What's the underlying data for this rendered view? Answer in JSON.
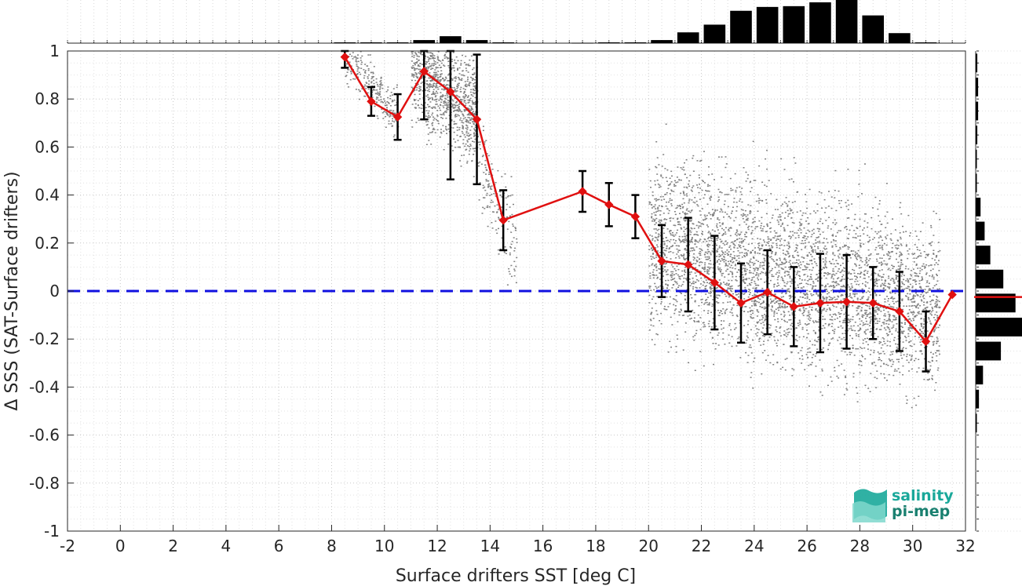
{
  "chart_data": {
    "type": "line",
    "xlabel": "Surface drifters SST [deg C]",
    "ylabel": "Δ SSS (SAT-Surface drifters)",
    "xlim": [
      -2,
      32
    ],
    "ylim": [
      -1,
      1
    ],
    "x_ticks": [
      "-2",
      "0",
      "2",
      "4",
      "6",
      "8",
      "10",
      "12",
      "14",
      "16",
      "18",
      "20",
      "22",
      "24",
      "26",
      "28",
      "30",
      "32"
    ],
    "y_ticks": [
      "-1",
      "-0.8",
      "-0.6",
      "-0.4",
      "-0.2",
      "0",
      "0.2",
      "0.4",
      "0.6",
      "0.8",
      "1"
    ],
    "grid": true,
    "reference_line": {
      "y": 0,
      "style": "dashed",
      "color": "#1010e0"
    },
    "series": [
      {
        "style": "red line with diamond markers and black error bars",
        "color": "#e01010",
        "errorbar_color": "#000000",
        "x": [
          8.5,
          9.5,
          10.5,
          11.5,
          12.5,
          13.5,
          14.5,
          17.5,
          18.5,
          19.5,
          20.5,
          21.5,
          22.5,
          23.5,
          24.5,
          25.5,
          26.5,
          27.5,
          28.5,
          29.5,
          30.5,
          31.5
        ],
        "y": [
          0.975,
          0.79,
          0.725,
          0.915,
          0.83,
          0.715,
          0.295,
          0.415,
          0.36,
          0.31,
          0.125,
          0.11,
          0.035,
          -0.05,
          -0.005,
          -0.065,
          -0.05,
          -0.045,
          -0.05,
          -0.085,
          -0.21,
          -0.015
        ],
        "yerr": [
          0.045,
          0.06,
          0.095,
          0.2,
          0.365,
          0.27,
          0.125,
          0.085,
          0.09,
          0.09,
          0.15,
          0.195,
          0.195,
          0.165,
          0.175,
          0.165,
          0.205,
          0.195,
          0.15,
          0.165,
          0.125,
          0
        ]
      }
    ],
    "scatter_cloud": {
      "color": "#808080",
      "description": "gray raw collocation points",
      "clusters": [
        {
          "x_range": [
            8.5,
            10.5
          ],
          "y_center": 0.82,
          "y_spread": 0.1
        },
        {
          "x_range": [
            11,
            13.5
          ],
          "y_center": 0.8,
          "y_spread": 0.22
        },
        {
          "x_range": [
            13.5,
            15
          ],
          "y_center": 0.3,
          "y_spread": 0.2
        },
        {
          "x_range": [
            20,
            31
          ],
          "y_center": -0.02,
          "y_spread": 0.35
        }
      ]
    },
    "top_histogram": {
      "description": "counts of SST bins",
      "x": [
        8.5,
        9.5,
        10.5,
        11.5,
        12.5,
        13.5,
        14.5,
        17.5,
        18.5,
        19.5,
        20.5,
        21.5,
        22.5,
        23.5,
        24.5,
        25.5,
        26.5,
        27.5,
        28.5,
        29.5,
        30.5
      ],
      "counts": [
        1,
        1,
        1,
        4,
        9,
        4,
        1,
        0.5,
        1,
        1,
        4,
        14,
        24,
        42,
        47,
        48,
        53,
        56,
        36,
        13,
        1
      ]
    },
    "right_histogram": {
      "description": "counts of Δ SSS bins",
      "y": [
        0.95,
        0.85,
        0.75,
        0.65,
        0.55,
        0.45,
        0.35,
        0.25,
        0.15,
        0.05,
        -0.05,
        -0.15,
        -0.25,
        -0.35,
        -0.45,
        -0.55
      ],
      "counts": [
        2,
        3,
        3,
        2,
        1,
        1,
        6,
        11,
        18,
        34,
        49,
        57,
        31,
        9,
        4,
        1
      ],
      "mean_marker_y": -0.025,
      "mean_marker_color": "#e01010"
    }
  },
  "logo": {
    "line1": "salinity",
    "line2": "pi-mep",
    "color": "#1aa89a"
  }
}
